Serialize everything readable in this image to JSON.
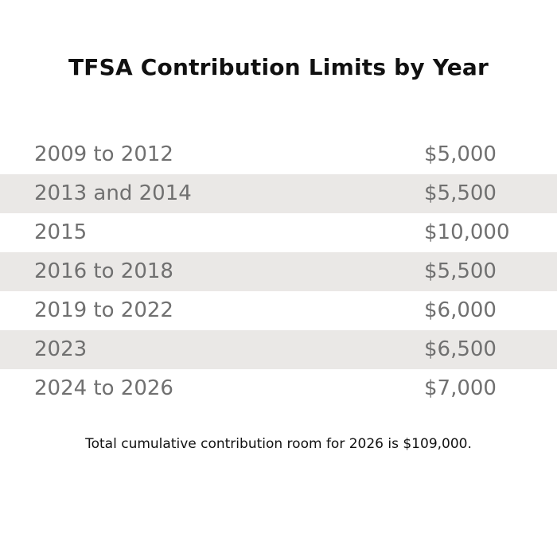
{
  "chart_data": {
    "type": "table",
    "title": "TFSA Contribution Limits by Year",
    "rows": [
      {
        "years": "2009 to 2012",
        "limit": "$5,000"
      },
      {
        "years": "2013 and 2014",
        "limit": "$5,500"
      },
      {
        "years": "2015",
        "limit": "$10,000"
      },
      {
        "years": "2016 to 2018",
        "limit": "$5,500"
      },
      {
        "years": "2019 to 2022",
        "limit": "$6,000"
      },
      {
        "years": "2023",
        "limit": "$6,500"
      },
      {
        "years": "2024 to 2026",
        "limit": "$7,000"
      }
    ],
    "footnote": "Total cumulative contribution room for 2026 is $109,000."
  },
  "colors": {
    "stripe": "#eae8e6",
    "row_text": "#707070",
    "title_text": "#111111"
  }
}
